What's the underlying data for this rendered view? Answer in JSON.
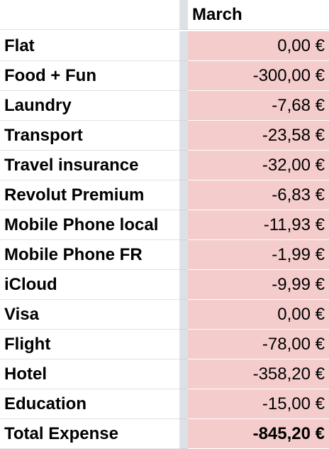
{
  "header": {
    "column": "March"
  },
  "rows": [
    {
      "label": "Flat",
      "value": "0,00 €"
    },
    {
      "label": "Food + Fun",
      "value": "-300,00 €"
    },
    {
      "label": "Laundry",
      "value": "-7,68 €"
    },
    {
      "label": "Transport",
      "value": "-23,58 €"
    },
    {
      "label": "Travel insurance",
      "value": "-32,00 €"
    },
    {
      "label": "Revolut Premium",
      "value": "-6,83 €"
    },
    {
      "label": "Mobile Phone local",
      "value": "-11,93 €"
    },
    {
      "label": "Mobile Phone FR",
      "value": "-1,99 €"
    },
    {
      "label": "iCloud",
      "value": "-9,99 €"
    },
    {
      "label": "Visa",
      "value": "0,00 €"
    },
    {
      "label": "Flight",
      "value": "-78,00 €"
    },
    {
      "label": "Hotel",
      "value": "-358,20 €"
    },
    {
      "label": "Education",
      "value": "-15,00 €"
    }
  ],
  "total": {
    "label": "Total Expense",
    "value": "-845,20 €"
  },
  "colors": {
    "value_fill": "#f4cccc",
    "gutter": "#dde1e6",
    "grid": "#e2e2e2"
  }
}
